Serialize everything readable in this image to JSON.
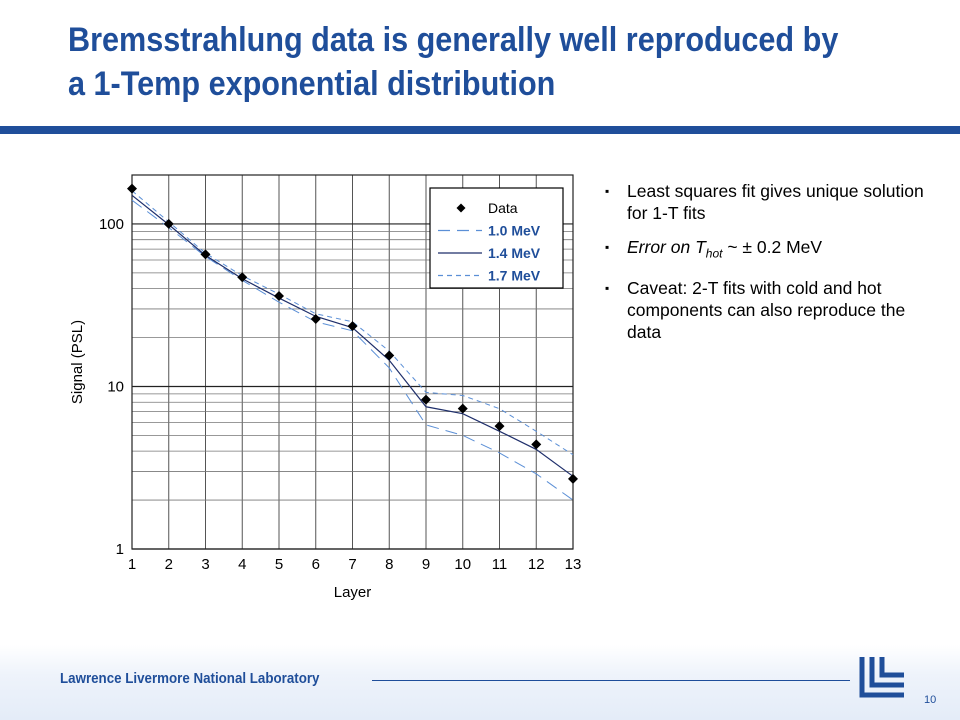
{
  "slide": {
    "title": "Bremsstrahlung data is generally well reproduced by a 1-Temp exponential distribution",
    "bullets": [
      {
        "text": "Least squares fit gives unique solution for 1-T fits"
      },
      {
        "pre": "Error on T",
        "sub": "hot",
        "post": " ~ ± 0.2 MeV"
      },
      {
        "text": "Caveat: 2-T fits with cold and hot components can also reproduce the data"
      }
    ],
    "bullet_marker": "▪",
    "footer": "Lawrence Livermore National Laboratory",
    "page_number": "10"
  },
  "colors": {
    "brand": "#1f4e9a",
    "fit_dashed": "#5b8fd6",
    "grid": "#555555"
  },
  "chart_data": {
    "type": "scatter",
    "xlabel": "Layer",
    "ylabel": "Signal (PSL)",
    "x_scale": "linear",
    "y_scale": "log",
    "xlim": [
      1,
      13
    ],
    "ylim": [
      1,
      200
    ],
    "x_ticks": [
      "1",
      "2",
      "3",
      "4",
      "5",
      "6",
      "7",
      "8",
      "9",
      "10",
      "11",
      "12",
      "13"
    ],
    "y_ticks": [
      {
        "value": 1,
        "label": "1"
      },
      {
        "value": 10,
        "label": "10"
      },
      {
        "value": 100,
        "label": "100"
      }
    ],
    "grid": true,
    "legend": {
      "position": "top-right",
      "label_color": "#1f4e9a"
    },
    "series": [
      {
        "name": "Data",
        "style": "markers",
        "marker": "diamond",
        "color": "#000000",
        "x": [
          1,
          2,
          3,
          4,
          5,
          6,
          7,
          8,
          9,
          10,
          11,
          12,
          13
        ],
        "y": [
          165,
          100,
          65,
          47,
          36,
          26,
          23.5,
          15.5,
          8.3,
          7.3,
          5.7,
          4.4,
          2.7
        ]
      },
      {
        "name": "1.0 MeV",
        "style": "dash-long",
        "color": "#5b8fd6",
        "x": [
          1,
          2,
          3,
          4,
          5,
          6,
          7,
          8,
          9,
          10,
          11,
          12,
          13
        ],
        "y": [
          140,
          95,
          63,
          45,
          33,
          25,
          22,
          13,
          5.8,
          5.0,
          3.9,
          2.9,
          2.0
        ]
      },
      {
        "name": "1.4 MeV",
        "style": "solid",
        "color": "#1f2f6b",
        "x": [
          1,
          2,
          3,
          4,
          5,
          6,
          7,
          8,
          9,
          10,
          11,
          12,
          13
        ],
        "y": [
          150,
          99,
          64,
          46,
          35,
          27,
          23,
          14.5,
          7.5,
          6.8,
          5.3,
          4.1,
          2.8
        ]
      },
      {
        "name": "1.7 MeV",
        "style": "dash-short",
        "color": "#5b8fd6",
        "x": [
          1,
          2,
          3,
          4,
          5,
          6,
          7,
          8,
          9,
          10,
          11,
          12,
          13
        ],
        "y": [
          160,
          103,
          66,
          48,
          37,
          28,
          25,
          16.5,
          9.2,
          8.8,
          7.3,
          5.3,
          3.8
        ]
      }
    ]
  }
}
